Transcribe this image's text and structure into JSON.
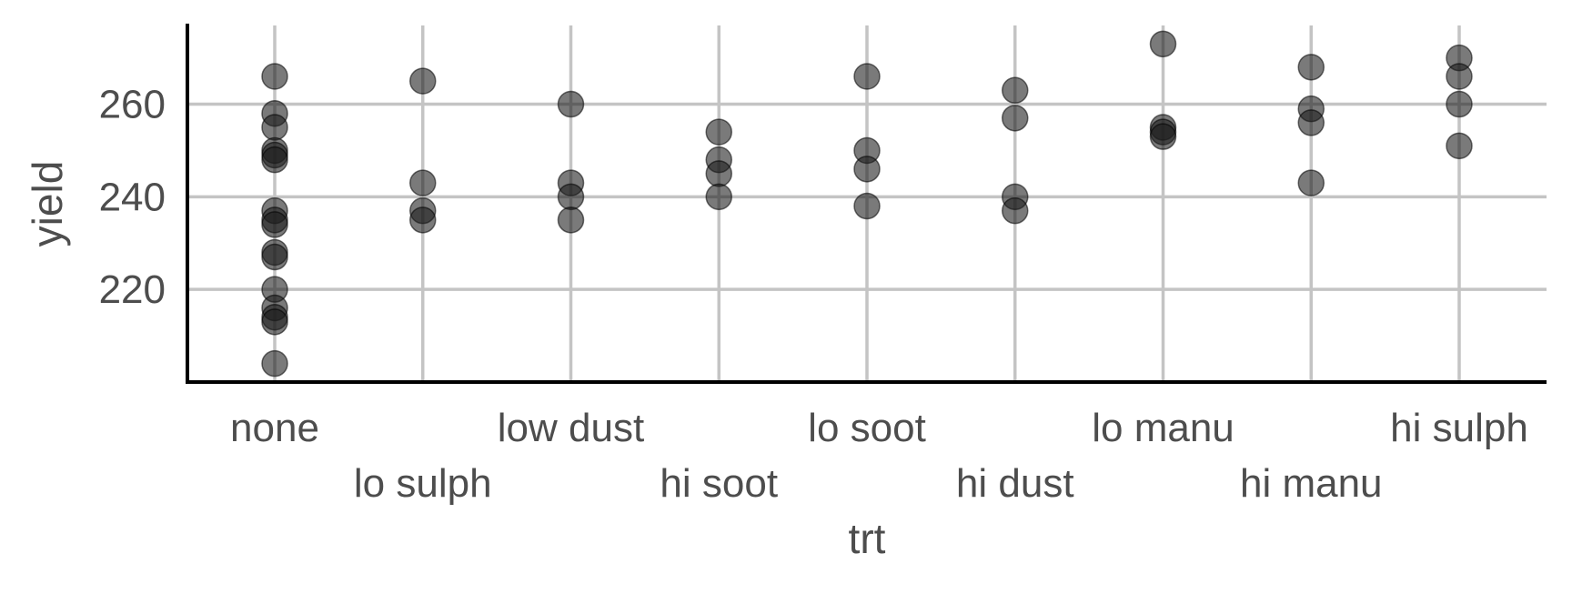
{
  "chart_data": {
    "type": "scatter",
    "xlabel": "trt",
    "ylabel": "yield",
    "categories": [
      "none",
      "lo sulph",
      "low dust",
      "hi soot",
      "lo soot",
      "hi dust",
      "lo manu",
      "hi manu",
      "hi sulph"
    ],
    "ylim": [
      200,
      277
    ],
    "yticks": [
      220,
      240,
      260
    ],
    "grid": true,
    "legend": "none",
    "colors": {
      "point": "#1a1a1a",
      "grid": "#c4c4c4",
      "axis": "#000000",
      "text": "#4d4d4d"
    },
    "points": [
      {
        "x": "none",
        "y": 266
      },
      {
        "x": "none",
        "y": 258
      },
      {
        "x": "none",
        "y": 255
      },
      {
        "x": "none",
        "y": 250
      },
      {
        "x": "none",
        "y": 249
      },
      {
        "x": "none",
        "y": 248
      },
      {
        "x": "none",
        "y": 237
      },
      {
        "x": "none",
        "y": 235
      },
      {
        "x": "none",
        "y": 234
      },
      {
        "x": "none",
        "y": 228
      },
      {
        "x": "none",
        "y": 227
      },
      {
        "x": "none",
        "y": 220
      },
      {
        "x": "none",
        "y": 216
      },
      {
        "x": "none",
        "y": 214
      },
      {
        "x": "none",
        "y": 213
      },
      {
        "x": "none",
        "y": 204
      },
      {
        "x": "lo sulph",
        "y": 265
      },
      {
        "x": "lo sulph",
        "y": 243
      },
      {
        "x": "lo sulph",
        "y": 237
      },
      {
        "x": "lo sulph",
        "y": 235
      },
      {
        "x": "low dust",
        "y": 260
      },
      {
        "x": "low dust",
        "y": 243
      },
      {
        "x": "low dust",
        "y": 240
      },
      {
        "x": "low dust",
        "y": 235
      },
      {
        "x": "hi soot",
        "y": 254
      },
      {
        "x": "hi soot",
        "y": 248
      },
      {
        "x": "hi soot",
        "y": 245
      },
      {
        "x": "hi soot",
        "y": 240
      },
      {
        "x": "lo soot",
        "y": 266
      },
      {
        "x": "lo soot",
        "y": 250
      },
      {
        "x": "lo soot",
        "y": 246
      },
      {
        "x": "lo soot",
        "y": 238
      },
      {
        "x": "hi dust",
        "y": 263
      },
      {
        "x": "hi dust",
        "y": 257
      },
      {
        "x": "hi dust",
        "y": 240
      },
      {
        "x": "hi dust",
        "y": 237
      },
      {
        "x": "lo manu",
        "y": 273
      },
      {
        "x": "lo manu",
        "y": 255
      },
      {
        "x": "lo manu",
        "y": 254
      },
      {
        "x": "lo manu",
        "y": 253
      },
      {
        "x": "hi manu",
        "y": 268
      },
      {
        "x": "hi manu",
        "y": 259
      },
      {
        "x": "hi manu",
        "y": 256
      },
      {
        "x": "hi manu",
        "y": 243
      },
      {
        "x": "hi sulph",
        "y": 270
      },
      {
        "x": "hi sulph",
        "y": 266
      },
      {
        "x": "hi sulph",
        "y": 260
      },
      {
        "x": "hi sulph",
        "y": 251
      }
    ]
  }
}
